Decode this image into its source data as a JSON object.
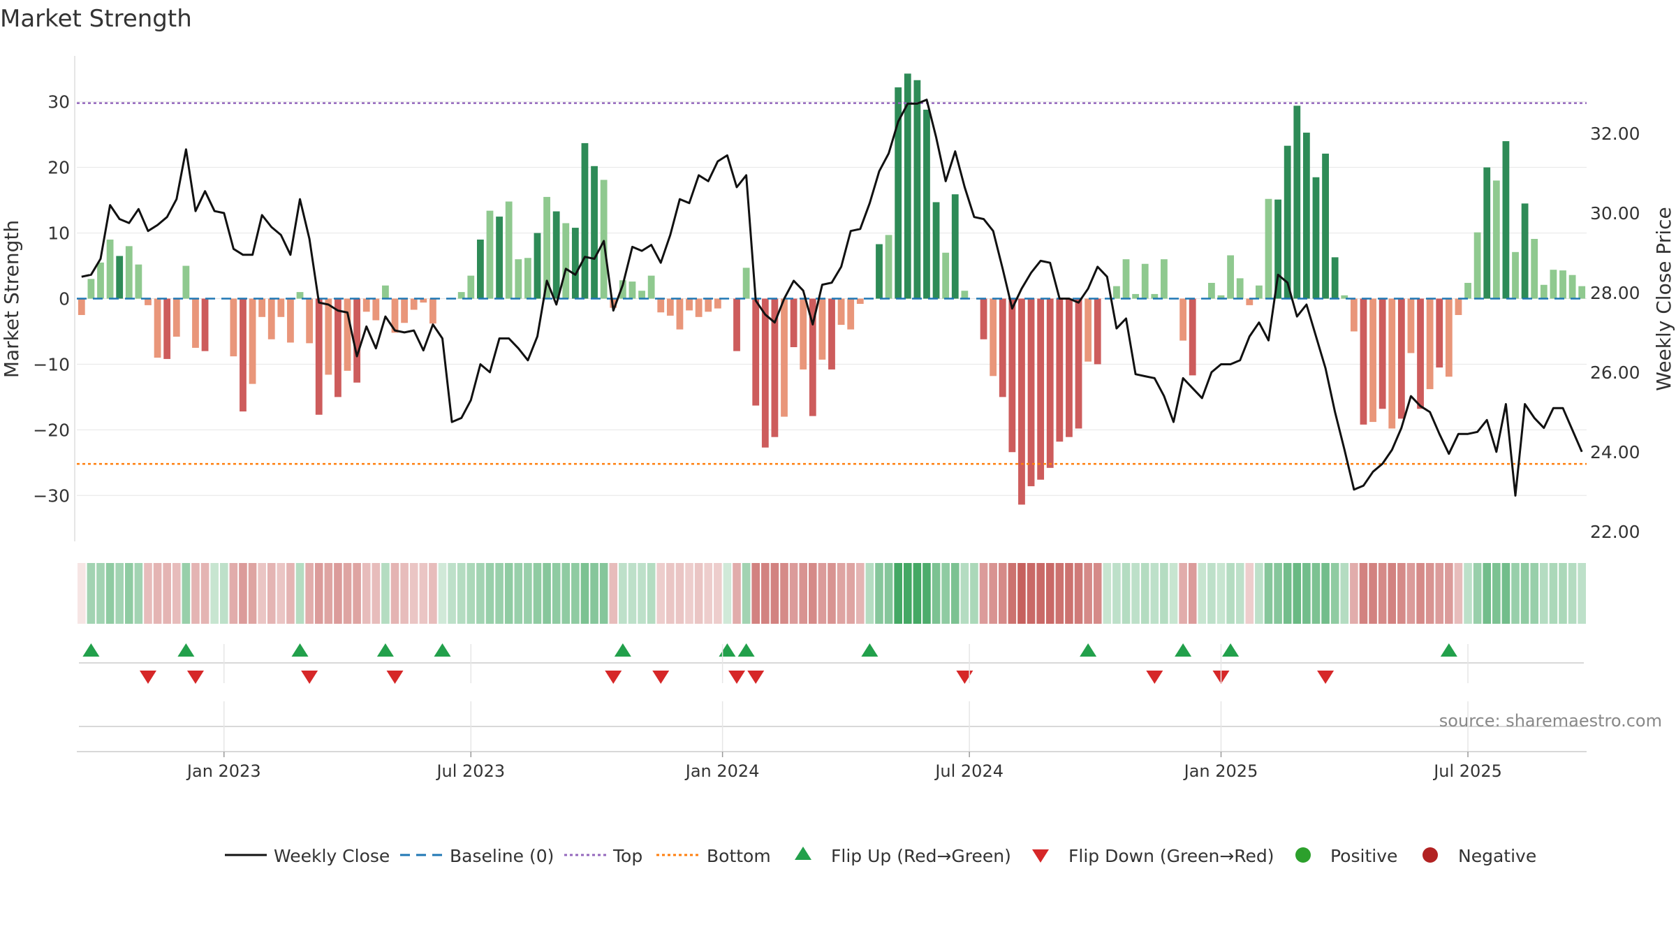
{
  "chart_data": {
    "type": "bar",
    "title": "Market Strength",
    "ylabel": "Market Strength",
    "y2label": "Weekly Close Price",
    "source": "source: sharemaestro.com",
    "ylim": [
      -37,
      37
    ],
    "y2lim": [
      21.75,
      33.95
    ],
    "y_ticks": [
      30,
      20,
      10,
      0,
      -10,
      -20,
      -30
    ],
    "y_tick_labels": [
      "30",
      "20",
      "10",
      "0",
      "−10",
      "−20",
      "−30"
    ],
    "y2_ticks": [
      32,
      30,
      28,
      26,
      24,
      22
    ],
    "y2_tick_labels": [
      "32.00",
      "30.00",
      "28.00",
      "26.00",
      "24.00",
      "22.00"
    ],
    "x_tick_labels": [
      "Jan 2023",
      "Jul 2023",
      "Jan 2024",
      "Jul 2024",
      "Jan 2025",
      "Jul 2025"
    ],
    "x_tick_weeks": [
      15,
      41,
      67.5,
      93.5,
      120,
      146
    ],
    "top": 29.8,
    "bottom": -25.2,
    "legend": [
      "Weekly Close",
      "Baseline (0)",
      "Top",
      "Bottom",
      "Flip Up (Red→Green)",
      "Flip Down (Green→Red)",
      "Positive",
      "Negative"
    ],
    "strength": [
      -2.5,
      3,
      5.5,
      9,
      6.5,
      8,
      5.2,
      -1,
      -9,
      -9.2,
      -5.8,
      5,
      -7.5,
      -8,
      0,
      0,
      -8.8,
      -17.2,
      -13,
      -2.8,
      -6.2,
      -2.8,
      -6.7,
      1,
      -6.8,
      -17.7,
      -11.6,
      -15,
      -11,
      -12.8,
      -2,
      -3.3,
      2,
      -5.2,
      -3.7,
      -1.7,
      -0.6,
      -3.8,
      0,
      0,
      1,
      3.5,
      9,
      13.4,
      12.5,
      14.8,
      6,
      6.2,
      10,
      15.5,
      13.3,
      11.5,
      10.8,
      23.7,
      20.2,
      18.1,
      -1.4,
      2.8,
      2.6,
      1.2,
      3.5,
      -2.1,
      -2.6,
      -4.7,
      -1.8,
      -2.8,
      -2,
      -1.5,
      0,
      -8,
      4.7,
      -16.3,
      -22.7,
      -21.1,
      -18,
      -7.4,
      -10.8,
      -17.9,
      -9.3,
      -10.8,
      -4,
      -4.7,
      -0.8,
      0,
      8.3,
      9.7,
      32.2,
      34.3,
      33.3,
      28.8,
      14.7,
      7,
      15.9,
      1.2,
      0,
      -6.2,
      -11.8,
      -15,
      -23.4,
      -31.4,
      -28.6,
      -27.6,
      -25.8,
      -21.8,
      -21.1,
      -19.8,
      -9.6,
      -10,
      0,
      1.9,
      6,
      0.7,
      5.3,
      0.7,
      6,
      0,
      -6.4,
      -11.7,
      0,
      2.4,
      0.5,
      6.6,
      3.1,
      -1,
      2,
      15.2,
      15.1,
      23.3,
      29.4,
      25.3,
      18.5,
      22.1,
      6.3,
      0.5,
      -5,
      -19.2,
      -18.8,
      -16.8,
      -19.8,
      -18.3,
      -8.3,
      -16.8,
      -13.8,
      -10.5,
      -11.9,
      -2.5,
      2.4,
      10.1,
      20,
      18,
      24,
      7.1,
      14.5,
      9.1,
      2.1,
      4.4,
      4.3,
      3.6,
      1.9
    ],
    "close": [
      28.4,
      28.45,
      28.85,
      30.2,
      29.85,
      29.75,
      30.1,
      29.55,
      29.7,
      29.9,
      30.35,
      31.6,
      30.05,
      30.55,
      30.05,
      30,
      29.1,
      28.95,
      28.95,
      29.95,
      29.65,
      29.45,
      28.95,
      30.35,
      29.35,
      27.75,
      27.7,
      27.55,
      27.5,
      26.4,
      27.15,
      26.6,
      27.4,
      27.05,
      27,
      27.05,
      26.55,
      27.2,
      26.85,
      24.75,
      24.85,
      25.3,
      26.2,
      26,
      26.85,
      26.85,
      26.6,
      26.3,
      26.9,
      28.3,
      27.7,
      28.6,
      28.45,
      28.9,
      28.85,
      29.3,
      27.55,
      28.2,
      29.15,
      29.05,
      29.2,
      28.75,
      29.45,
      30.35,
      30.25,
      30.95,
      30.8,
      31.3,
      31.45,
      30.65,
      30.95,
      27.8,
      27.45,
      27.25,
      27.85,
      28.3,
      28.05,
      27.2,
      28.2,
      28.25,
      28.65,
      29.55,
      29.6,
      30.25,
      31.05,
      31.5,
      32.3,
      32.75,
      32.75,
      32.85,
      31.9,
      30.8,
      31.55,
      30.65,
      29.9,
      29.85,
      29.55,
      28.6,
      27.6,
      28.1,
      28.5,
      28.8,
      28.75,
      27.85,
      27.85,
      27.75,
      28.1,
      28.65,
      28.4,
      27.1,
      27.35,
      25.95,
      25.9,
      25.85,
      25.4,
      24.75,
      25.85,
      25.6,
      25.35,
      26,
      26.2,
      26.2,
      26.3,
      26.9,
      27.25,
      26.8,
      28.45,
      28.25,
      27.4,
      27.7,
      26.9,
      26.1,
      25,
      24.05,
      23.05,
      23.15,
      23.5,
      23.7,
      24.05,
      24.6,
      25.4,
      25.15,
      25,
      24.45,
      23.95,
      24.45,
      24.45,
      24.5,
      24.8,
      24,
      25.2,
      22.9,
      25.2,
      24.85,
      24.6,
      25.1,
      25.1,
      24.55,
      24
    ]
  },
  "strength_band_values": [
    0.15,
    0.5,
    0.5,
    0.6,
    0.5,
    0.6,
    0.5,
    0.4,
    0.45,
    0.45,
    0.4,
    0.55,
    0.45,
    0.45,
    0.3,
    0.35,
    0.5,
    0.6,
    0.55,
    0.35,
    0.45,
    0.35,
    0.45,
    0.4,
    0.5,
    0.6,
    0.55,
    0.6,
    0.55,
    0.55,
    0.4,
    0.4,
    0.4,
    0.45,
    0.4,
    0.35,
    0.35,
    0.4,
    0.25,
    0.35,
    0.4,
    0.45,
    0.5,
    0.55,
    0.55,
    0.6,
    0.55,
    0.55,
    0.6,
    0.65,
    0.6,
    0.6,
    0.6,
    0.7,
    0.65,
    0.65,
    0.4,
    0.35,
    0.35,
    0.35,
    0.4,
    0.3,
    0.35,
    0.35,
    0.3,
    0.35,
    0.3,
    0.3,
    0.25,
    0.5,
    0.5,
    0.75,
    0.75,
    0.75,
    0.7,
    0.6,
    0.65,
    0.7,
    0.6,
    0.65,
    0.55,
    0.55,
    0.45,
    0.4,
    0.65,
    0.65,
    1,
    1,
    1,
    0.95,
    0.7,
    0.6,
    0.7,
    0.4,
    0.45,
    0.6,
    0.65,
    0.7,
    0.85,
    0.95,
    0.9,
    0.9,
    0.9,
    0.85,
    0.85,
    0.8,
    0.7,
    0.7,
    0.3,
    0.35,
    0.4,
    0.35,
    0.4,
    0.35,
    0.4,
    0.3,
    0.5,
    0.6,
    0.3,
    0.35,
    0.3,
    0.4,
    0.35,
    0.3,
    0.35,
    0.65,
    0.65,
    0.75,
    0.8,
    0.75,
    0.7,
    0.75,
    0.6,
    0.4,
    0.5,
    0.75,
    0.75,
    0.7,
    0.75,
    0.7,
    0.6,
    0.7,
    0.65,
    0.6,
    0.6,
    0.4,
    0.35,
    0.55,
    0.75,
    0.7,
    0.75,
    0.55,
    0.6,
    0.55,
    0.4,
    0.45,
    0.45,
    0.4,
    0.35
  ],
  "flip_up_weeks": [
    1,
    11,
    23,
    32,
    38,
    57,
    68,
    70,
    83,
    106,
    116,
    121,
    144
  ],
  "flip_down_weeks": [
    7,
    12,
    24,
    33,
    56,
    61,
    69,
    71,
    93,
    113,
    120,
    131
  ],
  "colors": {
    "line": "#111111",
    "baseline": "#1f77b4",
    "top": "#9467bd",
    "bottom": "#ff7f0e",
    "pos_strong": "#2e8b57",
    "pos_weak": "#8fc98f",
    "neg_strong": "#cd5c5c",
    "neg_weak": "#e9967a",
    "flip_up": "#22a04b",
    "flip_down": "#d62728",
    "positive": "#2ca02c",
    "negative": "#b22222",
    "band_green": "#3aa35c",
    "band_red": "#c0504d",
    "grid": "#e6e6e6",
    "source": "#888888"
  }
}
